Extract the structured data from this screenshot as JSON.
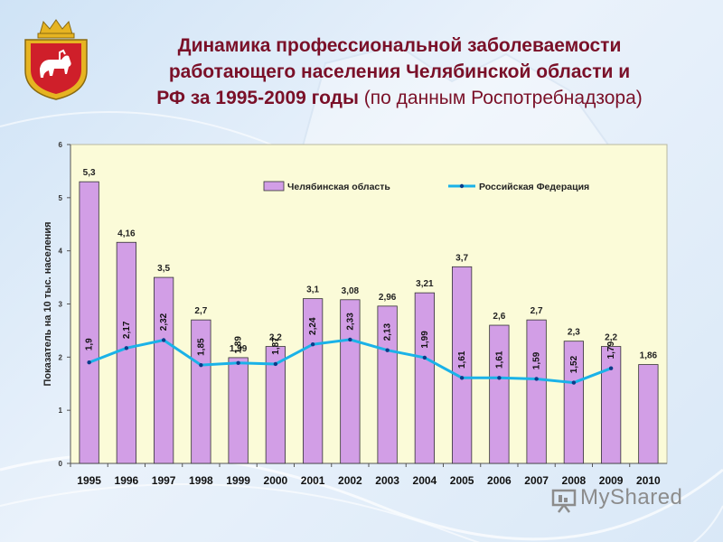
{
  "title": {
    "line1": "Динамика профессиональной заболеваемости",
    "line2": "работающего населения Челябинской области и",
    "line3": "РФ за 1995-2009 годы",
    "source": "(по данным Роспотребнадзора)"
  },
  "watermark": "MyShared",
  "colors": {
    "bar_fill": "#d29ee6",
    "bar_stroke": "#333333",
    "line": "#1ab2e8",
    "title": "#7a1028",
    "plot_bg": "#fbfbd8"
  },
  "chart_data": {
    "type": "bar",
    "categories": [
      "1995",
      "1996",
      "1997",
      "1998",
      "1999",
      "2000",
      "2001",
      "2002",
      "2003",
      "2004",
      "2005",
      "2006",
      "2007",
      "2008",
      "2009",
      "2010"
    ],
    "series": [
      {
        "name": "Челябинская область",
        "kind": "bar",
        "values": [
          5.3,
          4.16,
          3.5,
          2.7,
          1.99,
          2.2,
          3.1,
          3.08,
          2.96,
          3.21,
          3.7,
          2.6,
          2.7,
          2.3,
          2.2,
          1.86
        ],
        "labels": [
          "5,3",
          "4,16",
          "3,5",
          "2,7",
          "1,99",
          "2,2",
          "3,1",
          "3,08",
          "2,96",
          "3,21",
          "3,7",
          "2,6",
          "2,7",
          "2,3",
          "2,2",
          "1,86"
        ]
      },
      {
        "name": "Российская Федерация",
        "kind": "line",
        "values": [
          1.9,
          2.17,
          2.32,
          1.85,
          1.89,
          1.87,
          2.24,
          2.33,
          2.13,
          1.99,
          1.61,
          1.61,
          1.59,
          1.52,
          1.79,
          null
        ],
        "labels": [
          "1,9",
          "2,17",
          "2,32",
          "1,85",
          "1,89",
          "1,87",
          "2,24",
          "2,33",
          "2,13",
          "1,99",
          "1,61",
          "1,61",
          "1,59",
          "1,52",
          "1,79",
          ""
        ]
      }
    ],
    "ylabel": "Показатель на 10 тыс. населения",
    "ylim": [
      0,
      6
    ],
    "yticks": [
      "0",
      "1",
      "2",
      "3",
      "4",
      "5",
      "6"
    ],
    "legend_position": "top-right",
    "grid": false
  }
}
